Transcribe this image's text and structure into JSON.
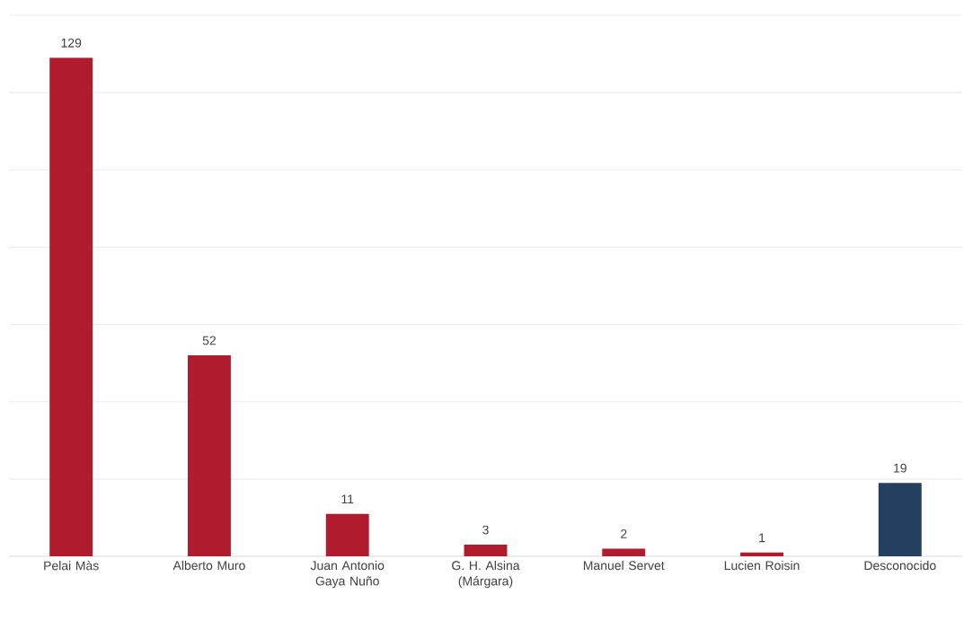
{
  "chart_data": {
    "type": "bar",
    "categories": [
      "Pelai Màs",
      "Alberto Muro",
      "Juan Antonio Gaya Nuño",
      "G. H. Alsina (Márgara)",
      "Manuel Servet",
      "Lucien Roisin",
      "Desconocido"
    ],
    "values": [
      129,
      52,
      11,
      3,
      2,
      1,
      19
    ],
    "colors": [
      "#b01b2e",
      "#b01b2e",
      "#b01b2e",
      "#b01b2e",
      "#b01b2e",
      "#b01b2e",
      "#243f60"
    ],
    "ylim": [
      0,
      140
    ],
    "yticks": [
      {
        "value": 0,
        "label": null
      },
      {
        "value": 20,
        "label": null
      },
      {
        "value": 40,
        "label": null
      },
      {
        "value": 60,
        "label": null
      },
      {
        "value": 80,
        "label": null
      },
      {
        "value": 100,
        "label": null
      },
      {
        "value": 120,
        "label": null
      },
      {
        "value": 140,
        "label": null
      }
    ],
    "tick_labels": "x",
    "grid": "y",
    "data_labels": true
  }
}
